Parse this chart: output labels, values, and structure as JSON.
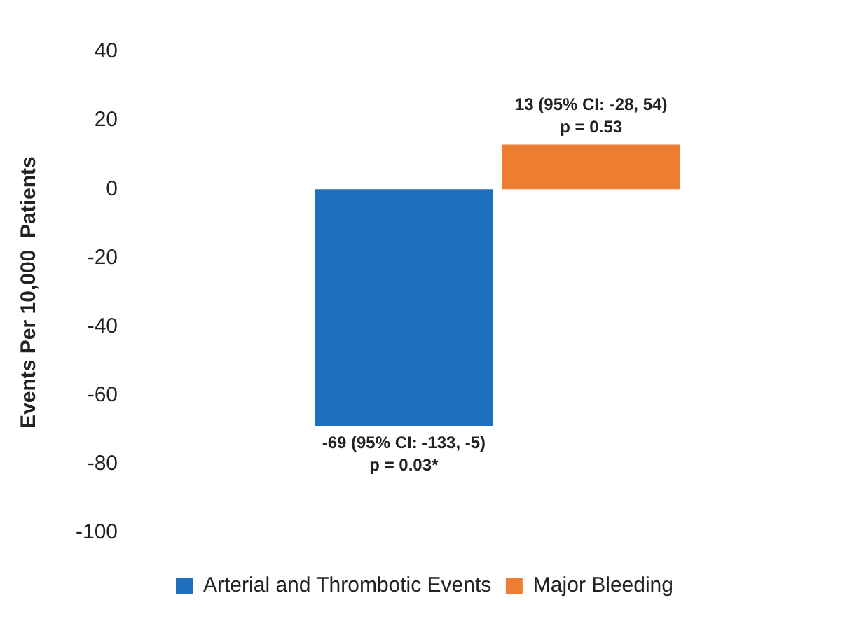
{
  "chart_data": {
    "type": "bar",
    "ylabel": "Events Per 10,000  Patients",
    "categories": [
      null
    ],
    "series": [
      {
        "name": "Arterial and Thrombotic Events",
        "color": "#1f6fbf",
        "values": [
          -69
        ],
        "value_labels": [
          "-69 (95% CI: -133, -5)\np = 0.03*"
        ]
      },
      {
        "name": "Major Bleeding",
        "color": "#ed7d31",
        "values": [
          13
        ],
        "value_labels": [
          "13 (95% CI: -28, 54)\np = 0.53"
        ]
      }
    ],
    "ylim": [
      -100,
      40
    ],
    "yticks": [
      -100,
      -80,
      -60,
      -40,
      -20,
      0,
      20,
      40
    ],
    "grid": false,
    "legend": "bottom"
  }
}
